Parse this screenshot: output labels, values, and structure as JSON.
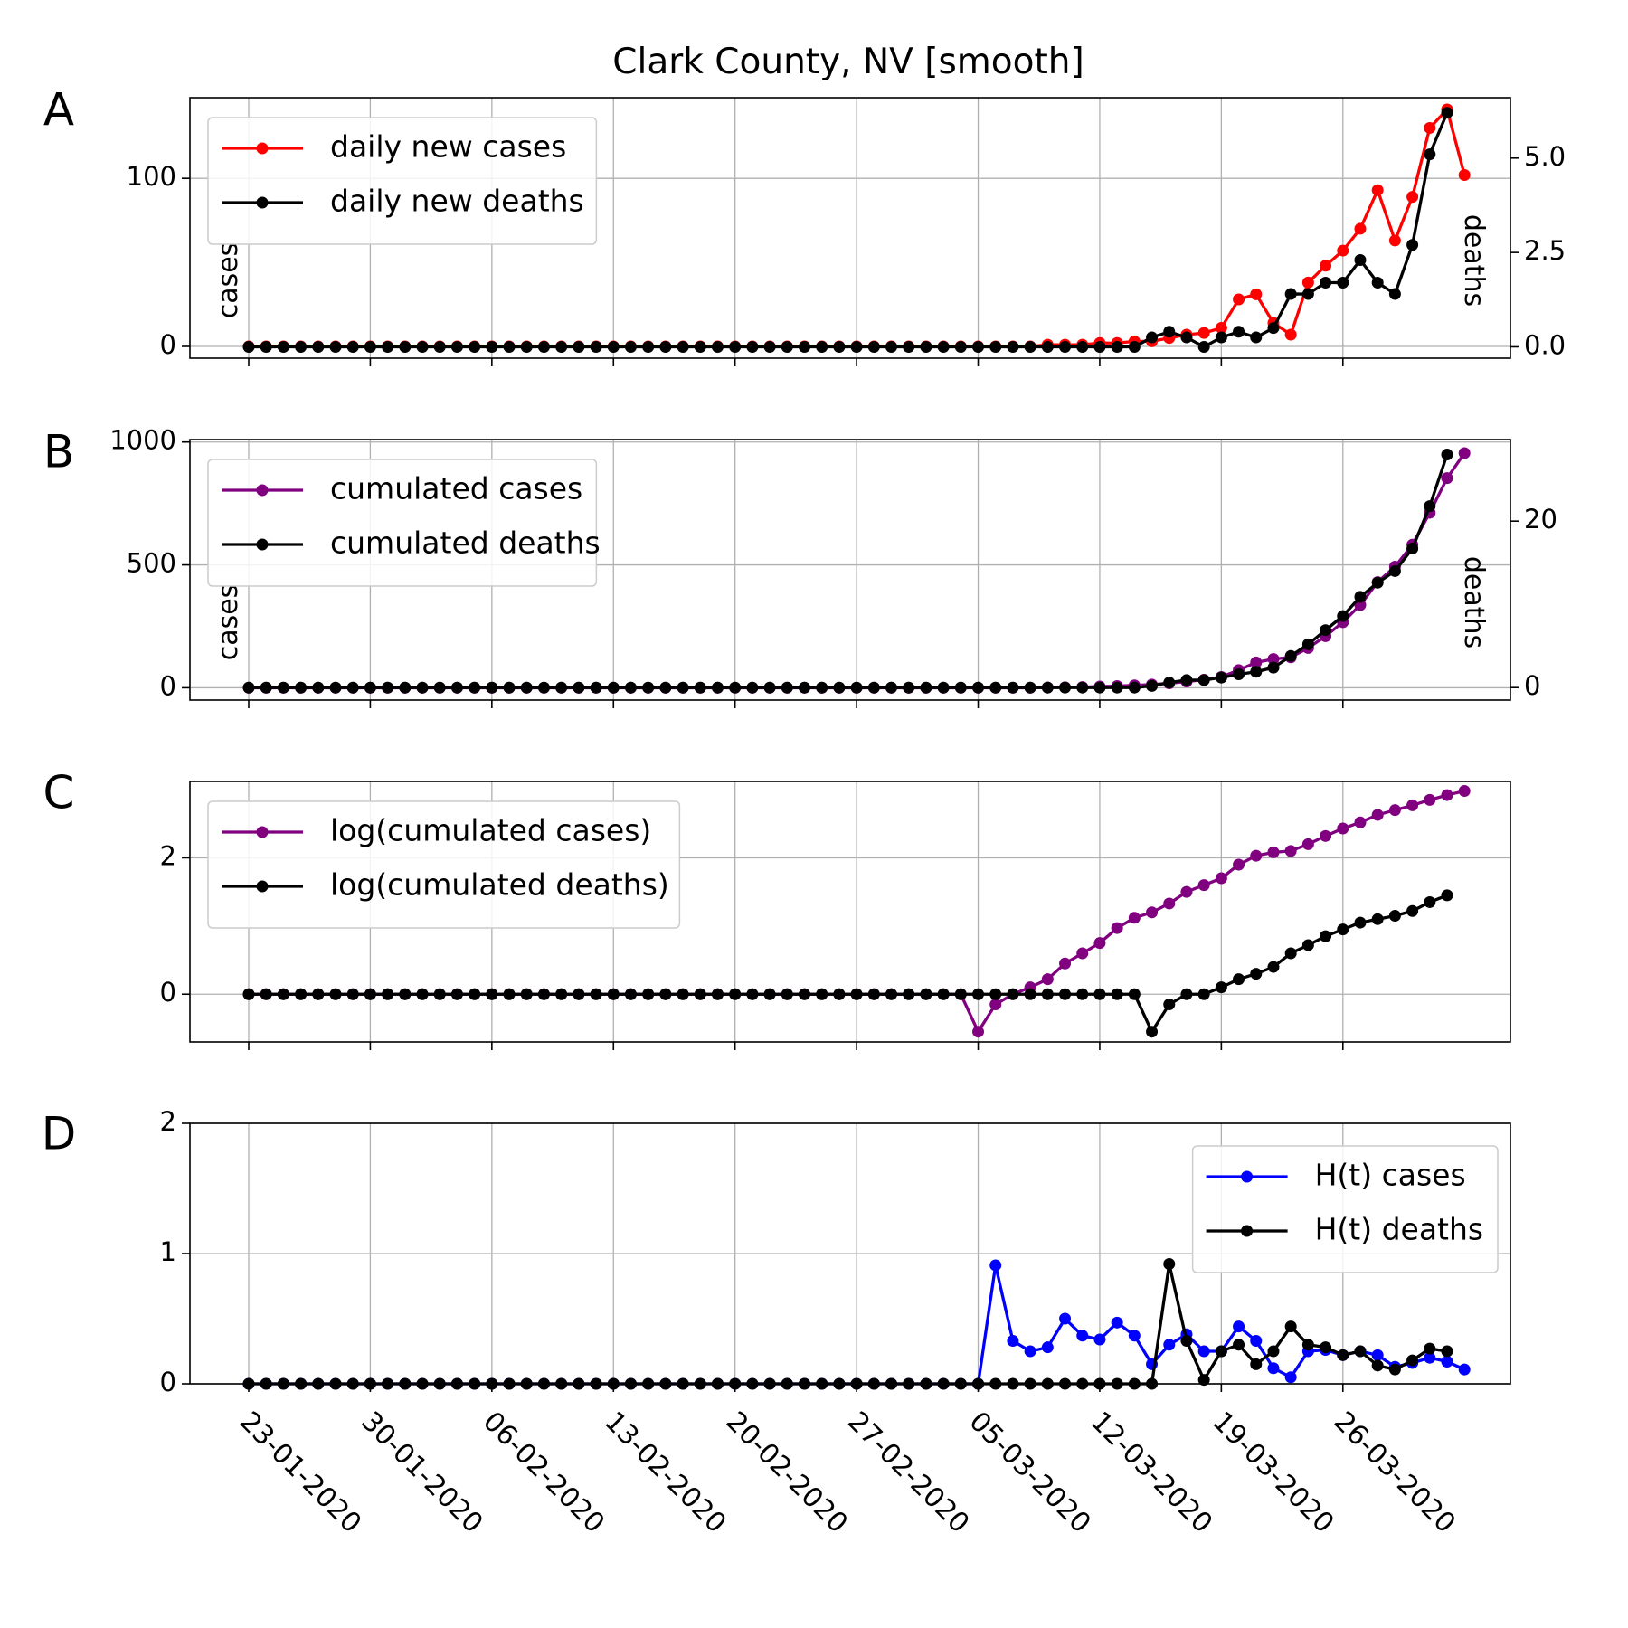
{
  "figure": {
    "title": "Clark County, NV [smooth]"
  },
  "colors": {
    "red": "#ff0000",
    "black": "#000000",
    "purple": "#800080",
    "blue": "#0000ff"
  },
  "chart_data": [
    {
      "type": "line",
      "panel": "A",
      "x_start": "23-01-2020",
      "x_end": "01-04-2020",
      "x_tick_labels": [
        "23-01-2020",
        "30-01-2020",
        "06-02-2020",
        "13-02-2020",
        "20-02-2020",
        "27-02-2020",
        "05-03-2020",
        "12-03-2020",
        "19-03-2020",
        "26-03-2020"
      ],
      "x_tick_labels_visible": false,
      "ylabel": "cases",
      "ylim": [
        -7,
        148
      ],
      "yticks": [
        0,
        100
      ],
      "y2label": "deaths",
      "y2lim": [
        -0.3,
        6.6
      ],
      "y2ticks": [
        0.0,
        2.5,
        5.0
      ],
      "y2tick_labels": [
        "0.0",
        "2.5",
        "5.0"
      ],
      "grid": true,
      "legend": "upper-left",
      "series": [
        {
          "name": "daily new cases",
          "color": "red",
          "axis": "left",
          "start_index": 0,
          "values": [
            0,
            0,
            0,
            0,
            0,
            0,
            0,
            0,
            0,
            0,
            0,
            0,
            0,
            0,
            0,
            0,
            0,
            0,
            0,
            0,
            0,
            0,
            0,
            0,
            0,
            0,
            0,
            0,
            0,
            0,
            0,
            0,
            0,
            0,
            0,
            0,
            0,
            0,
            0,
            0,
            0,
            0,
            0,
            0,
            0,
            0,
            1,
            1,
            1,
            2,
            2,
            3,
            3,
            5,
            7,
            8,
            11,
            28,
            31,
            14,
            7,
            38,
            48,
            57,
            70,
            93,
            63,
            89,
            130,
            141,
            102
          ]
        },
        {
          "name": "daily new deaths",
          "color": "black",
          "axis": "right",
          "start_index": 0,
          "values": [
            0,
            0,
            0,
            0,
            0,
            0,
            0,
            0,
            0,
            0,
            0,
            0,
            0,
            0,
            0,
            0,
            0,
            0,
            0,
            0,
            0,
            0,
            0,
            0,
            0,
            0,
            0,
            0,
            0,
            0,
            0,
            0,
            0,
            0,
            0,
            0,
            0,
            0,
            0,
            0,
            0,
            0,
            0,
            0,
            0,
            0,
            0,
            0,
            0,
            0,
            0,
            0,
            0.25,
            0.4,
            0.25,
            0,
            0.25,
            0.4,
            0.25,
            0.5,
            1.4,
            1.4,
            1.7,
            1.7,
            2.3,
            1.7,
            1.4,
            2.7,
            5.1,
            6.2
          ]
        }
      ]
    },
    {
      "type": "line",
      "panel": "B",
      "x_start": "23-01-2020",
      "x_end": "01-04-2020",
      "x_tick_labels_visible": false,
      "ylabel": "cases",
      "ylim": [
        -50,
        1010
      ],
      "yticks": [
        0,
        500,
        1000
      ],
      "y2label": "deaths",
      "y2lim": [
        -1.5,
        29.8
      ],
      "y2ticks": [
        0,
        20
      ],
      "grid": true,
      "legend": "upper-left",
      "series": [
        {
          "name": "cumulated cases",
          "color": "purple",
          "axis": "left",
          "start_index": 0,
          "values": [
            0,
            0,
            0,
            0,
            0,
            0,
            0,
            0,
            0,
            0,
            0,
            0,
            0,
            0,
            0,
            0,
            0,
            0,
            0,
            0,
            0,
            0,
            0,
            0,
            0,
            0,
            0,
            0,
            0,
            0,
            0,
            0,
            0,
            0,
            0,
            0,
            0,
            0,
            0,
            0,
            0,
            0,
            0,
            0,
            0,
            0,
            1,
            2,
            3,
            5,
            7,
            10,
            13,
            18,
            25,
            33,
            44,
            72,
            103,
            117,
            124,
            162,
            210,
            267,
            337,
            430,
            493,
            582,
            712,
            853,
            955
          ]
        },
        {
          "name": "cumulated deaths",
          "color": "black",
          "axis": "right",
          "start_index": 0,
          "values": [
            0,
            0,
            0,
            0,
            0,
            0,
            0,
            0,
            0,
            0,
            0,
            0,
            0,
            0,
            0,
            0,
            0,
            0,
            0,
            0,
            0,
            0,
            0,
            0,
            0,
            0,
            0,
            0,
            0,
            0,
            0,
            0,
            0,
            0,
            0,
            0,
            0,
            0,
            0,
            0,
            0,
            0,
            0,
            0,
            0,
            0,
            0,
            0,
            0,
            0,
            0,
            0,
            0.2,
            0.6,
            0.9,
            0.9,
            1.2,
            1.6,
            1.9,
            2.4,
            3.8,
            5.2,
            6.9,
            8.6,
            10.9,
            12.6,
            14,
            16.7,
            21.8,
            28
          ]
        }
      ]
    },
    {
      "type": "line",
      "panel": "C",
      "x_start": "23-01-2020",
      "x_end": "01-04-2020",
      "x_tick_labels_visible": false,
      "ylim": [
        -0.7,
        3.12
      ],
      "yticks": [
        0,
        2
      ],
      "grid": true,
      "legend": "upper-left",
      "series": [
        {
          "name": "log(cumulated cases)",
          "color": "purple",
          "start_index": 0,
          "values": [
            0,
            0,
            0,
            0,
            0,
            0,
            0,
            0,
            0,
            0,
            0,
            0,
            0,
            0,
            0,
            0,
            0,
            0,
            0,
            0,
            0,
            0,
            0,
            0,
            0,
            0,
            0,
            0,
            0,
            0,
            0,
            0,
            0,
            0,
            0,
            0,
            0,
            0,
            0,
            0,
            0,
            0,
            -0.55,
            -0.15,
            0,
            0.1,
            0.22,
            0.45,
            0.6,
            0.75,
            0.97,
            1.12,
            1.2,
            1.33,
            1.5,
            1.6,
            1.7,
            1.9,
            2.03,
            2.08,
            2.1,
            2.2,
            2.32,
            2.43,
            2.52,
            2.63,
            2.7,
            2.77,
            2.85,
            2.92,
            2.98
          ]
        },
        {
          "name": "log(cumulated deaths)",
          "color": "black",
          "start_index": 0,
          "values": [
            0,
            0,
            0,
            0,
            0,
            0,
            0,
            0,
            0,
            0,
            0,
            0,
            0,
            0,
            0,
            0,
            0,
            0,
            0,
            0,
            0,
            0,
            0,
            0,
            0,
            0,
            0,
            0,
            0,
            0,
            0,
            0,
            0,
            0,
            0,
            0,
            0,
            0,
            0,
            0,
            0,
            0,
            0,
            0,
            0,
            0,
            0,
            0,
            0,
            0,
            0,
            0,
            -0.55,
            -0.15,
            0,
            0,
            0.1,
            0.22,
            0.3,
            0.4,
            0.6,
            0.72,
            0.85,
            0.95,
            1.05,
            1.1,
            1.15,
            1.22,
            1.35,
            1.45
          ]
        }
      ]
    },
    {
      "type": "line",
      "panel": "D",
      "x_start": "23-01-2020",
      "x_end": "01-04-2020",
      "x_tick_labels_visible": true,
      "ylim": [
        0,
        2
      ],
      "yticks": [
        0,
        1,
        2
      ],
      "grid": true,
      "legend": "upper-right",
      "series": [
        {
          "name": "H(t) cases",
          "color": "blue",
          "start_index": 0,
          "values": [
            0,
            0,
            0,
            0,
            0,
            0,
            0,
            0,
            0,
            0,
            0,
            0,
            0,
            0,
            0,
            0,
            0,
            0,
            0,
            0,
            0,
            0,
            0,
            0,
            0,
            0,
            0,
            0,
            0,
            0,
            0,
            0,
            0,
            0,
            0,
            0,
            0,
            0,
            0,
            0,
            0,
            0,
            -0.1,
            0.91,
            0.33,
            0.25,
            0.28,
            0.5,
            0.37,
            0.34,
            0.47,
            0.37,
            0.15,
            0.3,
            0.38,
            0.25,
            0.25,
            0.44,
            0.33,
            0.12,
            0.05,
            0.25,
            0.26,
            0.22,
            0.25,
            0.22,
            0.13,
            0.16,
            0.2,
            0.17,
            0.11
          ]
        },
        {
          "name": "H(t) deaths",
          "color": "black",
          "start_index": 0,
          "values": [
            0,
            0,
            0,
            0,
            0,
            0,
            0,
            0,
            0,
            0,
            0,
            0,
            0,
            0,
            0,
            0,
            0,
            0,
            0,
            0,
            0,
            0,
            0,
            0,
            0,
            0,
            0,
            0,
            0,
            0,
            0,
            0,
            0,
            0,
            0,
            0,
            0,
            0,
            0,
            0,
            0,
            0,
            0,
            0,
            0,
            0,
            0,
            0,
            0,
            0,
            0,
            0,
            -0.3,
            0.92,
            0.33,
            0.03,
            0.25,
            0.3,
            0.15,
            0.25,
            0.44,
            0.3,
            0.28,
            0.22,
            0.25,
            0.14,
            0.11,
            0.18,
            0.27,
            0.25
          ]
        }
      ]
    }
  ]
}
